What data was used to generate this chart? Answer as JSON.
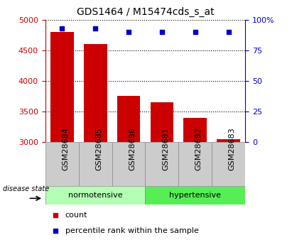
{
  "title": "GDS1464 / M15474cds_s_at",
  "categories": [
    "GSM28684",
    "GSM28685",
    "GSM28686",
    "GSM28681",
    "GSM28682",
    "GSM28683"
  ],
  "counts": [
    4800,
    4600,
    3750,
    3650,
    3400,
    3050
  ],
  "percentile_ranks": [
    93,
    93,
    90,
    90,
    90,
    90
  ],
  "bar_color": "#cc0000",
  "dot_color": "#0000cc",
  "ylim_left": [
    3000,
    5000
  ],
  "ylim_right": [
    0,
    100
  ],
  "yticks_left": [
    3000,
    3500,
    4000,
    4500,
    5000
  ],
  "yticks_right": [
    0,
    25,
    50,
    75,
    100
  ],
  "ytick_labels_right": [
    "0",
    "25",
    "50",
    "75",
    "100%"
  ],
  "group_labels": [
    "normotensive",
    "hypertensive"
  ],
  "group_colors": [
    "#b3ffb3",
    "#55ee55"
  ],
  "xlabel_color": "#cc0000",
  "ylabel_right_color": "#0000cc",
  "disease_state_label": "disease state",
  "legend_items": [
    "count",
    "percentile rank within the sample"
  ],
  "legend_colors": [
    "#cc0000",
    "#0000cc"
  ],
  "background_color": "#ffffff",
  "grid_color": "#000000",
  "tick_label_fontsize": 8,
  "title_fontsize": 10,
  "xtick_box_color": "#cccccc",
  "xtick_box_edge": "#888888"
}
